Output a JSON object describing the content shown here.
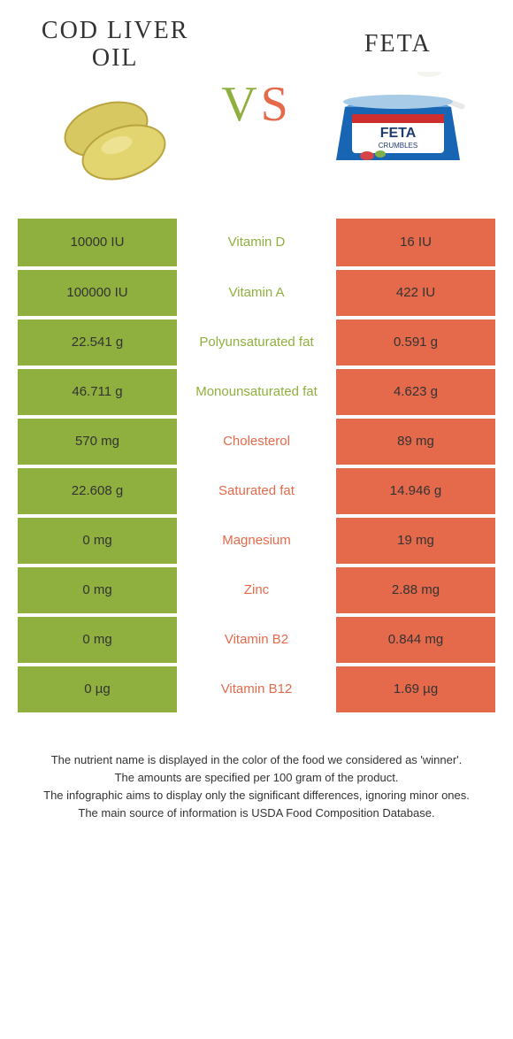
{
  "colors": {
    "left_bg": "#8fb03e",
    "right_bg": "#e46a4b",
    "mid_left_text": "#8fb03e",
    "mid_right_text": "#e46a4b",
    "body_text": "#333333",
    "page_bg": "#ffffff"
  },
  "header": {
    "left_title": "Cod liver oil",
    "right_title": "Feta",
    "vs_v": "V",
    "vs_s": "S"
  },
  "rows": [
    {
      "left": "10000 IU",
      "mid": "Vitamin D",
      "right": "16 IU",
      "winner": "left"
    },
    {
      "left": "100000 IU",
      "mid": "Vitamin A",
      "right": "422 IU",
      "winner": "left"
    },
    {
      "left": "22.541 g",
      "mid": "Polyunsaturated fat",
      "right": "0.591 g",
      "winner": "left"
    },
    {
      "left": "46.711 g",
      "mid": "Monounsaturated fat",
      "right": "4.623 g",
      "winner": "left"
    },
    {
      "left": "570 mg",
      "mid": "Cholesterol",
      "right": "89 mg",
      "winner": "right"
    },
    {
      "left": "22.608 g",
      "mid": "Saturated fat",
      "right": "14.946 g",
      "winner": "right"
    },
    {
      "left": "0 mg",
      "mid": "Magnesium",
      "right": "19 mg",
      "winner": "right"
    },
    {
      "left": "0 mg",
      "mid": "Zinc",
      "right": "2.88 mg",
      "winner": "right"
    },
    {
      "left": "0 mg",
      "mid": "Vitamin B2",
      "right": "0.844 mg",
      "winner": "right"
    },
    {
      "left": "0 µg",
      "mid": "Vitamin B12",
      "right": "1.69 µg",
      "winner": "right"
    }
  ],
  "footer": {
    "line1": "The nutrient name is displayed in the color of the food we considered as 'winner'.",
    "line2": "The amounts are specified per 100 gram of the product.",
    "line3": "The infographic aims to display only the significant differences, ignoring minor ones.",
    "line4": "The main source of information is USDA Food Composition Database."
  }
}
